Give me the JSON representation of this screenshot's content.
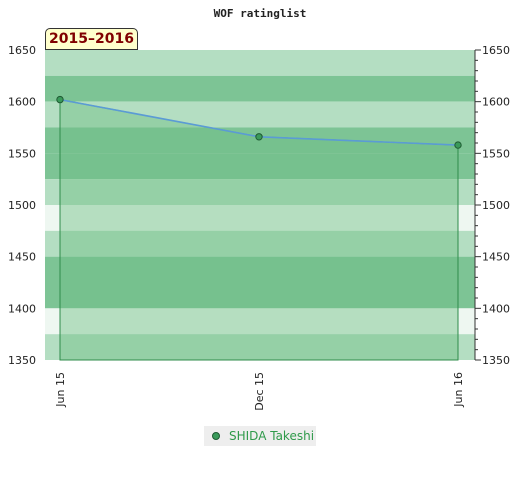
{
  "chart_data": {
    "type": "area",
    "title": "WOF ratinglist",
    "period_label": "2015–2016",
    "x_categories": [
      "Jun 15",
      "Dec 15",
      "Jun 16"
    ],
    "y_ticks": [
      1350,
      1400,
      1450,
      1500,
      1550,
      1600,
      1650
    ],
    "ylim": [
      1350,
      1650
    ],
    "series": [
      {
        "name": "SHIDA Takeshi",
        "values": [
          1602,
          1566,
          1558
        ]
      }
    ],
    "legend_position": "bottom-center",
    "colors": {
      "line": "#5b9bd5",
      "area": "#6fbf86",
      "marker": "#3a9a5a",
      "marker_edge": "#1e5a32",
      "band_dark": "#7dc495",
      "band_light": "#b4dec2",
      "band_pale": "#eef7f1"
    }
  }
}
